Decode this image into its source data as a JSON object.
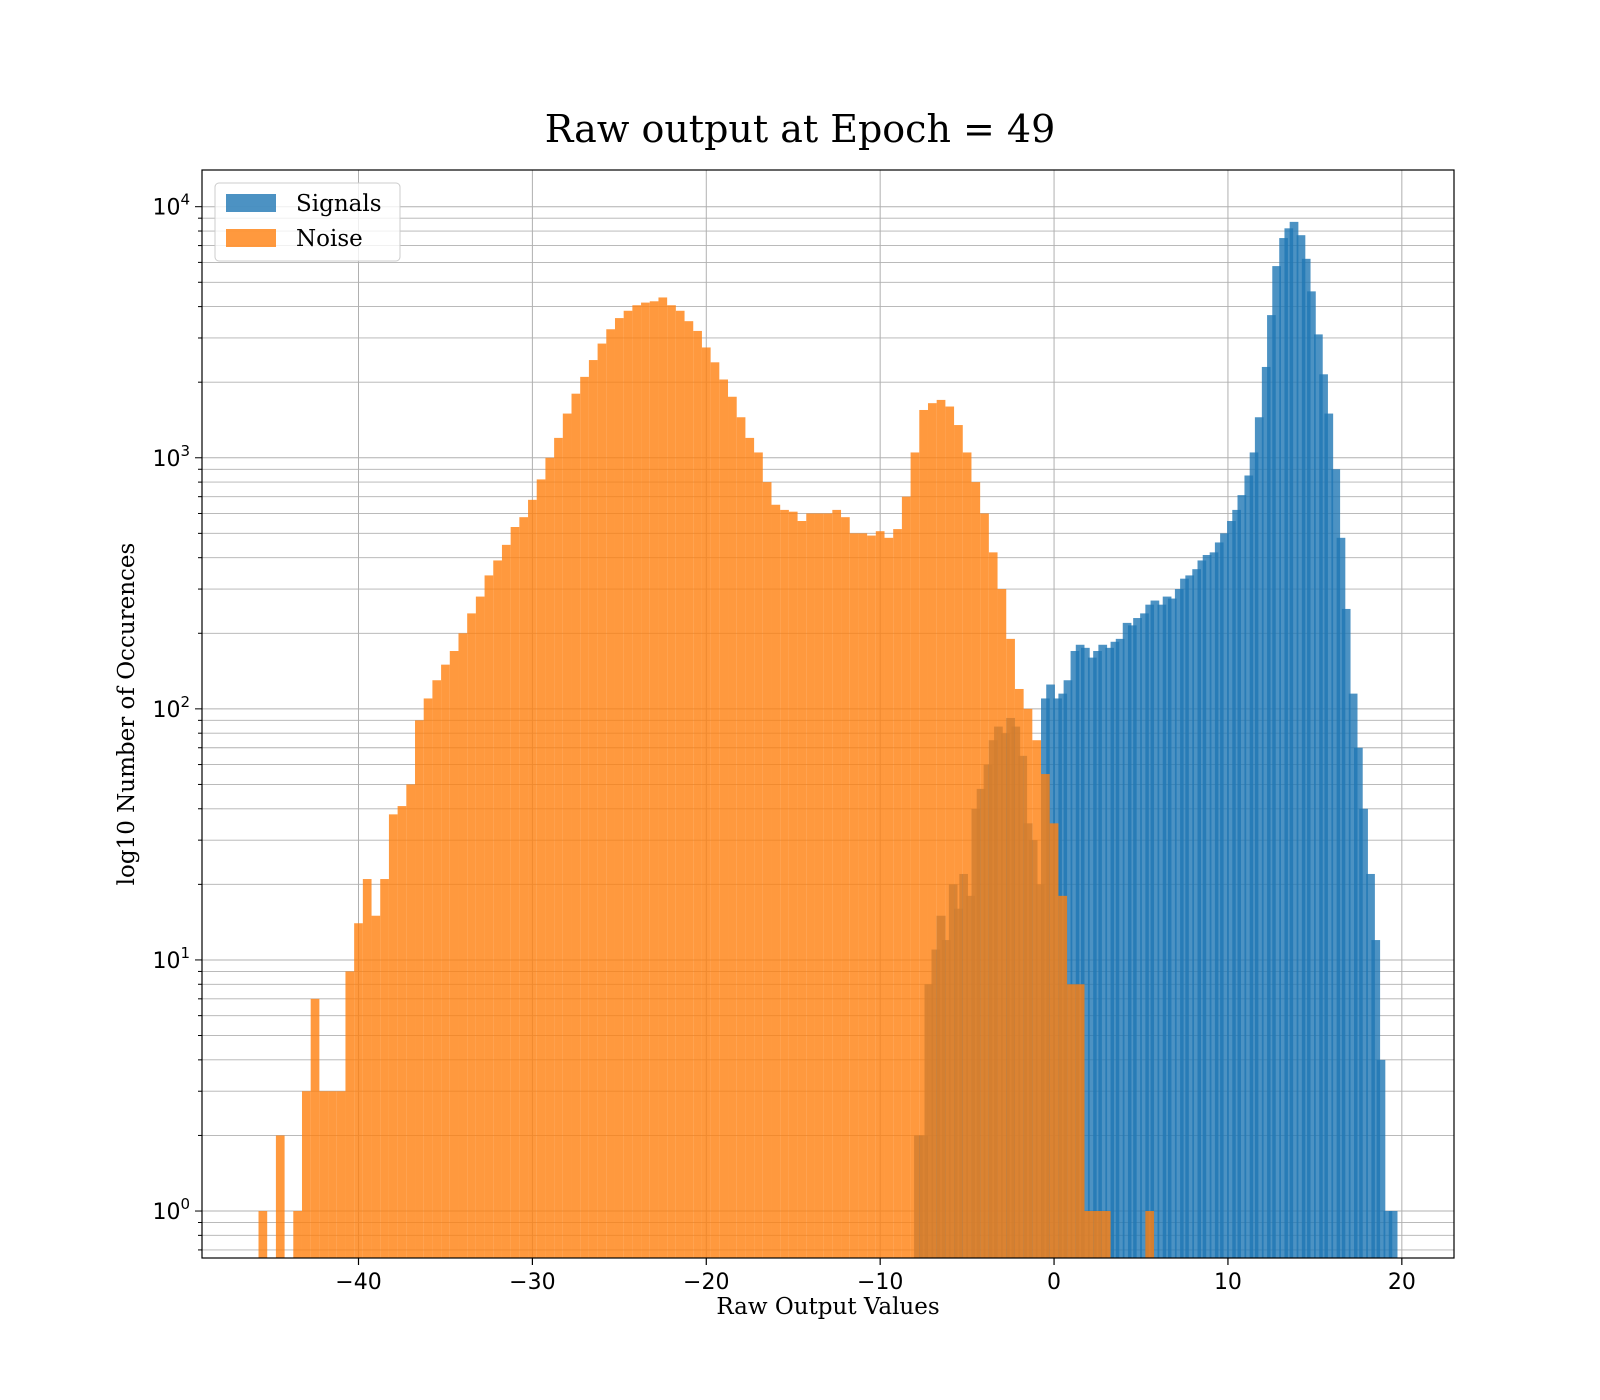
{
  "chart_data": {
    "type": "histogram",
    "title": "Raw output at Epoch = 49",
    "xlabel": "Raw Output Values",
    "ylabel": "log10 Number of Occurences",
    "xlim": [
      -49,
      23
    ],
    "ylim": [
      0.65,
      14000
    ],
    "yscale": "log",
    "grid": "both",
    "legend_position": "upper-left",
    "x_ticks": [
      -40,
      -30,
      -20,
      -10,
      0,
      10,
      20
    ],
    "x_tick_labels": [
      "−40",
      "−30",
      "−20",
      "−10",
      "0",
      "10",
      "20"
    ],
    "y_tick_labels": [
      {
        "value": 1,
        "base": "10",
        "exp": "0"
      },
      {
        "value": 10,
        "base": "10",
        "exp": "1"
      },
      {
        "value": 100,
        "base": "10",
        "exp": "2"
      },
      {
        "value": 1000,
        "base": "10",
        "exp": "3"
      },
      {
        "value": 10000,
        "base": "10",
        "exp": "4"
      }
    ],
    "series": [
      {
        "name": "Signals",
        "color": "#1f77b4",
        "alpha": 0.8,
        "bins": [
          [
            -7.8,
            2
          ],
          [
            -7.5,
            2
          ],
          [
            -7.2,
            8
          ],
          [
            -6.8,
            11
          ],
          [
            -6.5,
            15
          ],
          [
            -6.2,
            12
          ],
          [
            -5.8,
            20
          ],
          [
            -5.5,
            16
          ],
          [
            -5.2,
            22
          ],
          [
            -4.8,
            18
          ],
          [
            -4.5,
            40
          ],
          [
            -4.2,
            48
          ],
          [
            -3.8,
            60
          ],
          [
            -3.5,
            75
          ],
          [
            -3.2,
            85
          ],
          [
            -2.8,
            80
          ],
          [
            -2.5,
            92
          ],
          [
            -2.2,
            85
          ],
          [
            -1.8,
            65
          ],
          [
            -1.5,
            35
          ],
          [
            -1.2,
            30
          ],
          [
            -0.8,
            20
          ],
          [
            -0.5,
            110
          ],
          [
            -0.2,
            125
          ],
          [
            0.2,
            110
          ],
          [
            0.5,
            115
          ],
          [
            0.8,
            130
          ],
          [
            1.2,
            170
          ],
          [
            1.5,
            180
          ],
          [
            1.8,
            175
          ],
          [
            2.2,
            160
          ],
          [
            2.5,
            170
          ],
          [
            2.8,
            180
          ],
          [
            3.2,
            175
          ],
          [
            3.5,
            185
          ],
          [
            3.8,
            190
          ],
          [
            4.2,
            220
          ],
          [
            4.5,
            215
          ],
          [
            4.8,
            230
          ],
          [
            5.2,
            240
          ],
          [
            5.5,
            260
          ],
          [
            5.8,
            270
          ],
          [
            6.2,
            260
          ],
          [
            6.5,
            280
          ],
          [
            6.8,
            275
          ],
          [
            7.2,
            300
          ],
          [
            7.5,
            330
          ],
          [
            7.8,
            340
          ],
          [
            8.2,
            360
          ],
          [
            8.5,
            390
          ],
          [
            8.8,
            410
          ],
          [
            9.2,
            420
          ],
          [
            9.5,
            460
          ],
          [
            9.8,
            500
          ],
          [
            10.2,
            560
          ],
          [
            10.5,
            620
          ],
          [
            10.8,
            710
          ],
          [
            11.2,
            850
          ],
          [
            11.5,
            1050
          ],
          [
            11.8,
            1450
          ],
          [
            12.2,
            2300
          ],
          [
            12.5,
            3700
          ],
          [
            12.8,
            5800
          ],
          [
            13.2,
            7500
          ],
          [
            13.5,
            8200
          ],
          [
            13.8,
            8700
          ],
          [
            14.2,
            7700
          ],
          [
            14.5,
            6200
          ],
          [
            14.8,
            4600
          ],
          [
            15.2,
            3100
          ],
          [
            15.5,
            2150
          ],
          [
            15.8,
            1500
          ],
          [
            16.2,
            900
          ],
          [
            16.5,
            480
          ],
          [
            16.8,
            250
          ],
          [
            17.2,
            115
          ],
          [
            17.5,
            70
          ],
          [
            17.8,
            40
          ],
          [
            18.2,
            22
          ],
          [
            18.5,
            12
          ],
          [
            18.8,
            4
          ],
          [
            19.2,
            1
          ],
          [
            19.5,
            1
          ]
        ]
      },
      {
        "name": "Noise",
        "color": "#ff7f0e",
        "alpha": 0.8,
        "bins": [
          [
            -45.5,
            1
          ],
          [
            -44.5,
            2
          ],
          [
            -43.5,
            1
          ],
          [
            -43.0,
            3
          ],
          [
            -42.5,
            7
          ],
          [
            -42.0,
            3
          ],
          [
            -41.5,
            3
          ],
          [
            -41.0,
            3
          ],
          [
            -40.5,
            9
          ],
          [
            -40.0,
            14
          ],
          [
            -39.5,
            21
          ],
          [
            -39.0,
            15
          ],
          [
            -38.5,
            21
          ],
          [
            -38.0,
            38
          ],
          [
            -37.5,
            41
          ],
          [
            -37.0,
            50
          ],
          [
            -36.5,
            90
          ],
          [
            -36.0,
            110
          ],
          [
            -35.5,
            130
          ],
          [
            -35.0,
            150
          ],
          [
            -34.5,
            170
          ],
          [
            -34.0,
            200
          ],
          [
            -33.5,
            240
          ],
          [
            -33.0,
            280
          ],
          [
            -32.5,
            340
          ],
          [
            -32.0,
            390
          ],
          [
            -31.5,
            450
          ],
          [
            -31.0,
            530
          ],
          [
            -30.5,
            580
          ],
          [
            -30.0,
            680
          ],
          [
            -29.5,
            820
          ],
          [
            -29.0,
            1000
          ],
          [
            -28.5,
            1200
          ],
          [
            -28.0,
            1500
          ],
          [
            -27.5,
            1800
          ],
          [
            -27.0,
            2100
          ],
          [
            -26.5,
            2450
          ],
          [
            -26.0,
            2850
          ],
          [
            -25.5,
            3250
          ],
          [
            -25.0,
            3600
          ],
          [
            -24.5,
            3850
          ],
          [
            -24.0,
            4050
          ],
          [
            -23.5,
            4150
          ],
          [
            -23.0,
            4200
          ],
          [
            -22.5,
            4350
          ],
          [
            -22.0,
            4050
          ],
          [
            -21.5,
            3850
          ],
          [
            -21.0,
            3500
          ],
          [
            -20.5,
            3200
          ],
          [
            -20.0,
            2750
          ],
          [
            -19.5,
            2400
          ],
          [
            -19.0,
            2050
          ],
          [
            -18.5,
            1750
          ],
          [
            -18.0,
            1450
          ],
          [
            -17.5,
            1200
          ],
          [
            -17.0,
            1050
          ],
          [
            -16.5,
            800
          ],
          [
            -16.0,
            650
          ],
          [
            -15.5,
            620
          ],
          [
            -15.0,
            610
          ],
          [
            -14.5,
            560
          ],
          [
            -14.0,
            600
          ],
          [
            -13.5,
            600
          ],
          [
            -13.0,
            600
          ],
          [
            -12.5,
            620
          ],
          [
            -12.0,
            580
          ],
          [
            -11.5,
            500
          ],
          [
            -11.0,
            500
          ],
          [
            -10.5,
            490
          ],
          [
            -10.0,
            510
          ],
          [
            -9.5,
            480
          ],
          [
            -9.0,
            520
          ],
          [
            -8.5,
            700
          ],
          [
            -8.0,
            1050
          ],
          [
            -7.5,
            1550
          ],
          [
            -7.0,
            1650
          ],
          [
            -6.5,
            1700
          ],
          [
            -6.0,
            1600
          ],
          [
            -5.5,
            1350
          ],
          [
            -5.0,
            1050
          ],
          [
            -4.5,
            800
          ],
          [
            -4.0,
            600
          ],
          [
            -3.5,
            420
          ],
          [
            -3.0,
            300
          ],
          [
            -2.5,
            190
          ],
          [
            -2.0,
            120
          ],
          [
            -1.5,
            100
          ],
          [
            -1.0,
            75
          ],
          [
            -0.5,
            55
          ],
          [
            0.0,
            35
          ],
          [
            0.5,
            18
          ],
          [
            1.0,
            8
          ],
          [
            1.5,
            8
          ],
          [
            2.0,
            1
          ],
          [
            2.5,
            1
          ],
          [
            3.0,
            1
          ],
          [
            5.5,
            1
          ]
        ]
      }
    ]
  }
}
